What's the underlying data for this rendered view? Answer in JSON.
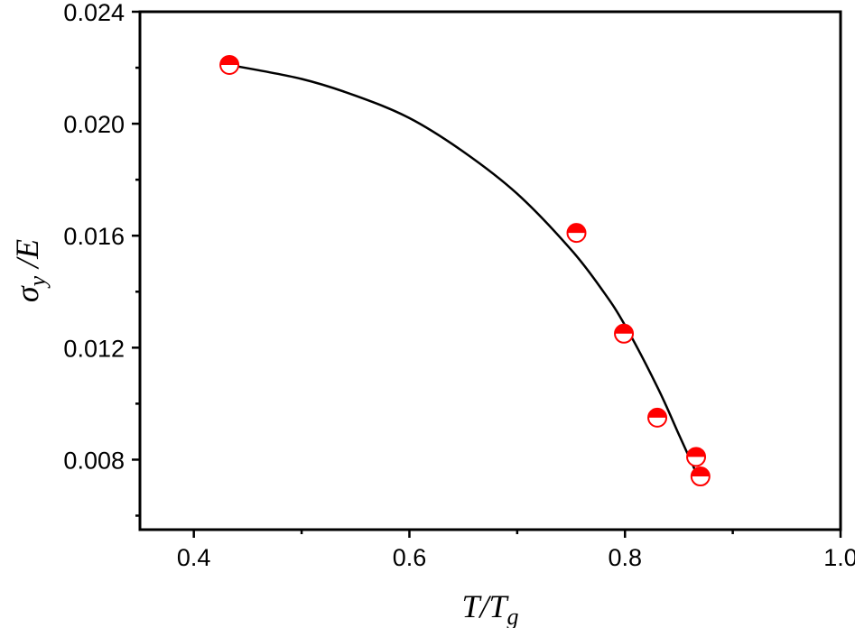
{
  "chart_data": {
    "type": "scatter",
    "xlabel": {
      "main": "T/T",
      "sub": "g"
    },
    "ylabel": {
      "main": "σ",
      "sub": "y",
      "suffix": " /E"
    },
    "xlim": [
      0.35,
      1.0
    ],
    "ylim": [
      0.0055,
      0.024
    ],
    "xticks": [
      {
        "value": 0.4,
        "label": "0.4"
      },
      {
        "value": 0.6,
        "label": "0.6"
      },
      {
        "value": 0.8,
        "label": "0.8"
      },
      {
        "value": 1.0,
        "label": "1.0"
      }
    ],
    "yticks": [
      {
        "value": 0.008,
        "label": "0.008"
      },
      {
        "value": 0.012,
        "label": "0.012"
      },
      {
        "value": 0.016,
        "label": "0.016"
      },
      {
        "value": 0.02,
        "label": "0.020"
      },
      {
        "value": 0.024,
        "label": "0.024"
      }
    ],
    "xminor": [
      0.5,
      0.7,
      0.9
    ],
    "yminor": [
      0.006,
      0.01,
      0.014,
      0.018,
      0.022
    ],
    "points": {
      "x": [
        0.433,
        0.755,
        0.799,
        0.83,
        0.866,
        0.87
      ],
      "y": [
        0.0221,
        0.0161,
        0.0125,
        0.0095,
        0.0081,
        0.0074
      ]
    },
    "fit_curve": {
      "x": [
        0.433,
        0.5,
        0.55,
        0.6,
        0.65,
        0.7,
        0.75,
        0.78,
        0.8,
        0.83,
        0.85,
        0.87
      ],
      "y": [
        0.0221,
        0.0216,
        0.021,
        0.0202,
        0.019,
        0.0175,
        0.0155,
        0.014,
        0.0128,
        0.0106,
        0.0089,
        0.0072
      ]
    },
    "colors": {
      "marker": "#ff0000",
      "curve": "#000000",
      "axis": "#000000"
    }
  }
}
